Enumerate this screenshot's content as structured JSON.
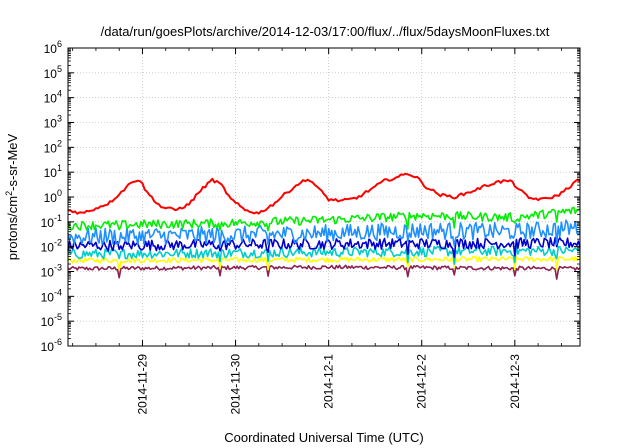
{
  "chart_data": {
    "type": "line",
    "title": "/data/run/goesPlots/archive/2014-12-03/17:00/flux/../flux/5daysMoonFluxes.txt",
    "xlabel": "Coordinated Universal Time (UTC)",
    "ylabel": {
      "prefix": "protons/cm",
      "sup": "2",
      "suffix": "-s-sr-MeV"
    },
    "y_scale": "log",
    "ylim": [
      1e-06,
      1000000.0
    ],
    "y_ticks": [
      {
        "base": "10",
        "exp": "-6"
      },
      {
        "base": "10",
        "exp": "-5"
      },
      {
        "base": "10",
        "exp": "-4"
      },
      {
        "base": "10",
        "exp": "-3"
      },
      {
        "base": "10",
        "exp": "-2"
      },
      {
        "base": "10",
        "exp": "-1"
      },
      {
        "base": "10",
        "exp": "0"
      },
      {
        "base": "10",
        "exp": "1"
      },
      {
        "base": "10",
        "exp": "2"
      },
      {
        "base": "10",
        "exp": "3"
      },
      {
        "base": "10",
        "exp": "4"
      },
      {
        "base": "10",
        "exp": "5"
      },
      {
        "base": "10",
        "exp": "6"
      }
    ],
    "x_unit": "days since 2014-11-28 00:00 UTC",
    "xlim": [
      0.2,
      5.7
    ],
    "x_ticks": [
      {
        "value": 1.0,
        "label": "2014-11-29"
      },
      {
        "value": 2.0,
        "label": "2014-11-30"
      },
      {
        "value": 3.0,
        "label": "2014-12-1"
      },
      {
        "value": 4.0,
        "label": "2014-12-2"
      },
      {
        "value": 5.0,
        "label": "2014-12-3"
      }
    ],
    "grid": true,
    "legend": "none",
    "series": [
      {
        "color": "#ff0000",
        "points": [
          [
            0.2,
            0.3
          ],
          [
            0.35,
            0.22
          ],
          [
            0.5,
            0.35
          ],
          [
            0.65,
            0.6
          ],
          [
            0.8,
            2.0
          ],
          [
            0.9,
            4.5
          ],
          [
            0.97,
            5.0
          ],
          [
            1.05,
            1.5
          ],
          [
            1.2,
            0.4
          ],
          [
            1.35,
            0.3
          ],
          [
            1.5,
            0.5
          ],
          [
            1.6,
            1.5
          ],
          [
            1.75,
            5.0
          ],
          [
            1.85,
            3.0
          ],
          [
            1.95,
            0.8
          ],
          [
            2.1,
            0.3
          ],
          [
            2.25,
            0.22
          ],
          [
            2.4,
            0.5
          ],
          [
            2.55,
            1.5
          ],
          [
            2.7,
            4.0
          ],
          [
            2.8,
            5.0
          ],
          [
            2.9,
            2.0
          ],
          [
            3.0,
            0.8
          ],
          [
            3.15,
            0.7
          ],
          [
            3.3,
            0.9
          ],
          [
            3.45,
            2.0
          ],
          [
            3.6,
            4.5
          ],
          [
            3.75,
            6.5
          ],
          [
            3.85,
            9.0
          ],
          [
            3.95,
            6.0
          ],
          [
            4.05,
            2.5
          ],
          [
            4.2,
            1.2
          ],
          [
            4.35,
            1.0
          ],
          [
            4.5,
            1.5
          ],
          [
            4.65,
            2.5
          ],
          [
            4.8,
            4.0
          ],
          [
            4.95,
            4.5
          ],
          [
            5.05,
            2.0
          ],
          [
            5.15,
            0.9
          ],
          [
            5.3,
            0.8
          ],
          [
            5.45,
            1.1
          ],
          [
            5.55,
            2.0
          ],
          [
            5.65,
            4.0
          ],
          [
            5.7,
            5.0
          ]
        ]
      },
      {
        "color": "#00ee00",
        "base": 0.09,
        "noise": 0.18,
        "trend": [
          [
            0.2,
            0.07
          ],
          [
            2.0,
            0.09
          ],
          [
            3.0,
            0.12
          ],
          [
            4.0,
            0.18
          ],
          [
            5.0,
            0.15
          ],
          [
            5.7,
            0.3
          ]
        ]
      },
      {
        "color": "#1e90ff",
        "base": 0.03,
        "noise": 0.35,
        "trend": [
          [
            0.2,
            0.025
          ],
          [
            2.0,
            0.03
          ],
          [
            3.0,
            0.035
          ],
          [
            4.0,
            0.045
          ],
          [
            5.0,
            0.04
          ],
          [
            5.7,
            0.06
          ]
        ]
      },
      {
        "color": "#0000cd",
        "base": 0.012,
        "noise": 0.22,
        "trend": [
          [
            0.2,
            0.011
          ],
          [
            3.0,
            0.013
          ],
          [
            5.7,
            0.014
          ]
        ]
      },
      {
        "color": "#00cccc",
        "base": 0.006,
        "noise": 0.2,
        "trend": [
          [
            0.2,
            0.005
          ],
          [
            3.0,
            0.006
          ],
          [
            5.7,
            0.007
          ]
        ]
      },
      {
        "color": "#ffff00",
        "base": 0.003,
        "noise": 0.1,
        "trend": [
          [
            0.2,
            0.0028
          ],
          [
            3.0,
            0.003
          ],
          [
            5.7,
            0.0032
          ]
        ]
      },
      {
        "color": "#8b2252",
        "base": 0.0014,
        "noise": 0.08,
        "trend": [
          [
            0.2,
            0.0013
          ],
          [
            3.0,
            0.0015
          ],
          [
            5.7,
            0.0013
          ]
        ]
      }
    ],
    "dips": [
      0.75,
      1.83,
      2.35,
      3.85,
      4.35,
      5.0,
      5.45
    ]
  }
}
